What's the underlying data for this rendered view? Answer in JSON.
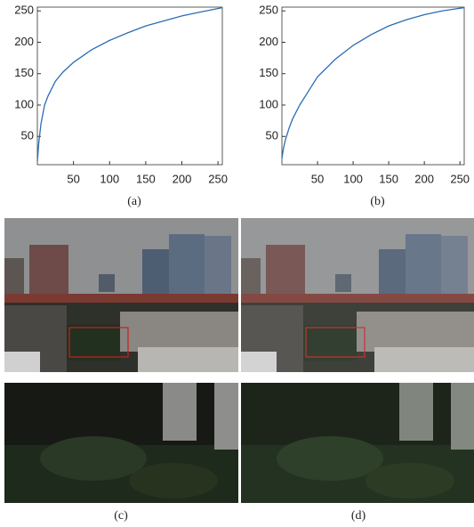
{
  "chart_data": [
    {
      "type": "line",
      "caption": "(a)",
      "color": "#2a6db5",
      "x": [
        0,
        2,
        5,
        10,
        15,
        25,
        35,
        50,
        75,
        100,
        125,
        150,
        175,
        200,
        225,
        255
      ],
      "values": [
        10,
        40,
        70,
        100,
        115,
        138,
        152,
        168,
        188,
        203,
        215,
        226,
        234,
        242,
        248,
        255
      ],
      "xlim": [
        0,
        256
      ],
      "ylim": [
        5,
        256
      ],
      "xticks": [
        50,
        100,
        150,
        200,
        250
      ],
      "yticks": [
        50,
        100,
        150,
        200,
        250
      ]
    },
    {
      "type": "line",
      "caption": "(b)",
      "color": "#2a6db5",
      "x": [
        0,
        2,
        5,
        10,
        15,
        25,
        35,
        50,
        75,
        100,
        125,
        150,
        175,
        200,
        225,
        255
      ],
      "values": [
        15,
        30,
        45,
        63,
        78,
        100,
        118,
        145,
        173,
        195,
        212,
        226,
        236,
        244,
        250,
        255
      ],
      "xlim": [
        0,
        256
      ],
      "ylim": [
        5,
        256
      ],
      "xticks": [
        50,
        100,
        150,
        200,
        250
      ],
      "yticks": [
        50,
        100,
        150,
        200,
        250
      ]
    }
  ],
  "images": [
    {
      "caption": "(c)"
    },
    {
      "caption": "(d)"
    }
  ]
}
